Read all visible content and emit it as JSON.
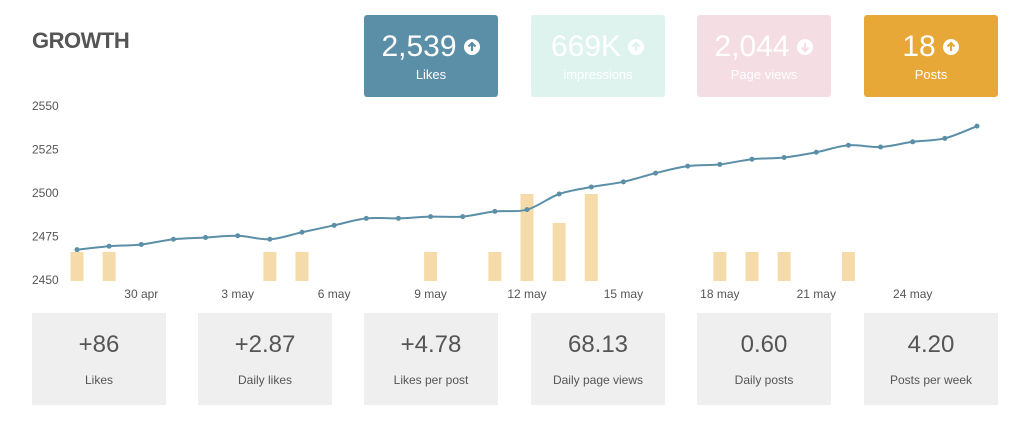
{
  "title": "GROWTH",
  "kpis": [
    {
      "value": "2,539",
      "label": "Likes",
      "color": "#5b8fa8"
    },
    {
      "value": "669K",
      "label": "impressions",
      "color": "#dff3ee"
    },
    {
      "value": "2,044",
      "label": "Page views",
      "color": "#f5dde4"
    },
    {
      "value": "18",
      "label": "Posts",
      "color": "#e8a838"
    }
  ],
  "stats": [
    {
      "value": "+86",
      "label": "Likes"
    },
    {
      "value": "+2.87",
      "label": "Daily likes"
    },
    {
      "value": "+4.78",
      "label": "Likes per post"
    },
    {
      "value": "68.13",
      "label": "Daily page views"
    },
    {
      "value": "0.60",
      "label": "Daily posts"
    },
    {
      "value": "4.20",
      "label": "Posts per week"
    }
  ],
  "chart_data": {
    "type": "line",
    "categories": [
      null,
      null,
      "30 apr",
      null,
      null,
      "3 may",
      null,
      null,
      "6 may",
      null,
      null,
      "9 may",
      null,
      null,
      "12 may",
      null,
      null,
      "15 may",
      null,
      null,
      "18 may",
      null,
      null,
      "21 may",
      null,
      null,
      "24 may",
      null,
      null
    ],
    "series": [
      {
        "name": "Likes",
        "type": "line",
        "color": "#5b8fa8",
        "values": [
          2468,
          2470,
          2471,
          2474,
          2475,
          2476,
          2474,
          2478,
          2482,
          2486,
          2486,
          2487,
          2487,
          2490,
          2491,
          2500,
          2504,
          2507,
          2512,
          2516,
          2517,
          2520,
          2521,
          2524,
          2528,
          2527,
          2530,
          2532,
          2539
        ]
      },
      {
        "name": "Posts",
        "type": "bar",
        "axis": "y2",
        "color": "#f6dbaa",
        "values": [
          1,
          1,
          0,
          0,
          0,
          0,
          1,
          1,
          0,
          0,
          0,
          1,
          0,
          1,
          3,
          2,
          3,
          0,
          0,
          0,
          1,
          1,
          1,
          0,
          1,
          0,
          0,
          0,
          0
        ]
      }
    ],
    "ylim": [
      2450,
      2550
    ],
    "yticks": [
      2450,
      2475,
      2500,
      2525,
      2550
    ],
    "y2lim": [
      0,
      6
    ],
    "grid": false
  }
}
